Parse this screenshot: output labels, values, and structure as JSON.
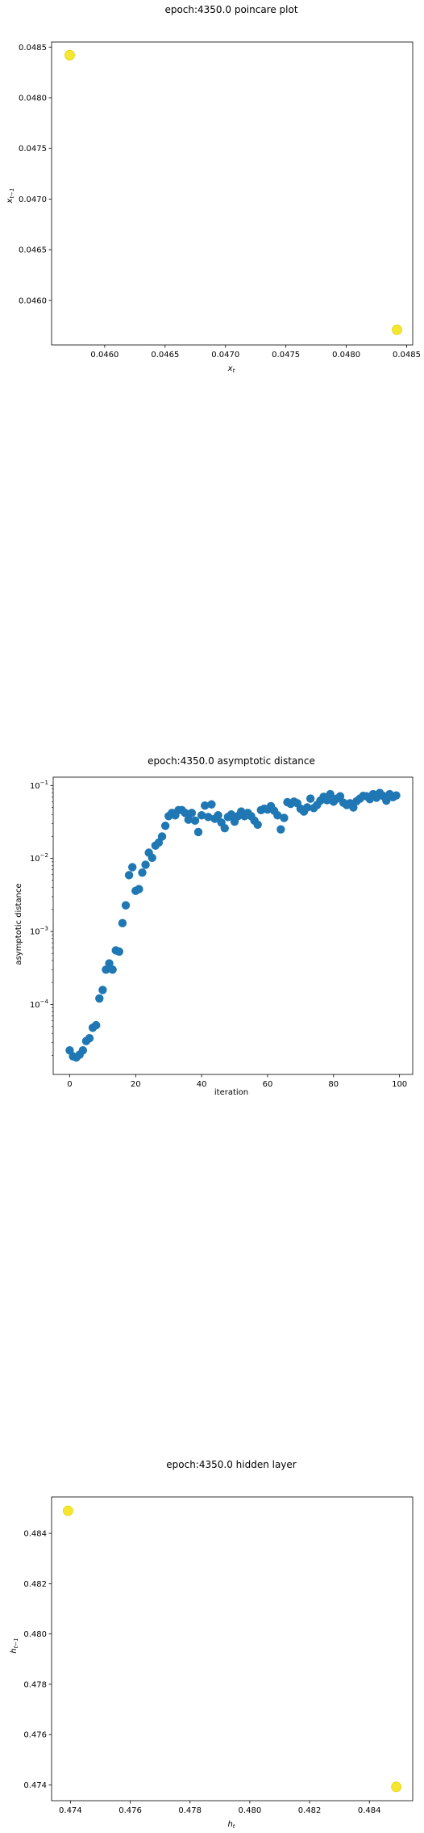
{
  "colors": {
    "yellow_marker": "#f5e631",
    "blue_marker": "#1f77b4"
  },
  "chart_data": [
    {
      "type": "scatter",
      "title": "epoch:4350.0 poincare plot",
      "xlabel": "x_t",
      "ylabel": "x_{t-1}",
      "xlim": [
        0.04556,
        0.04855
      ],
      "ylim": [
        0.04556,
        0.04855
      ],
      "xticks": [
        "0.0460",
        "0.0465",
        "0.0470",
        "0.0475",
        "0.0480",
        "0.0485"
      ],
      "yticks": [
        "0.0460",
        "0.0465",
        "0.0470",
        "0.0475",
        "0.0480",
        "0.0485"
      ],
      "points": [
        {
          "x": 0.04571,
          "y": 0.04842
        },
        {
          "x": 0.04842,
          "y": 0.04571
        }
      ],
      "grid": false,
      "legend": "none"
    },
    {
      "type": "scatter",
      "title": "epoch:4350.0 asymptotic distance",
      "xlabel": "iteration",
      "ylabel": "asymptotic distance",
      "yscale": "log",
      "xlim": [
        -5,
        104
      ],
      "ylim": [
        1.1e-05,
        0.13
      ],
      "xticks": [
        "0",
        "20",
        "40",
        "60",
        "80",
        "100"
      ],
      "yticks": [
        "10^-4",
        "10^-3",
        "10^-2",
        "10^-1"
      ],
      "x": [
        0,
        1,
        2,
        3,
        4,
        5,
        6,
        7,
        8,
        9,
        10,
        11,
        12,
        13,
        14,
        15,
        16,
        17,
        18,
        19,
        20,
        21,
        22,
        23,
        24,
        25,
        26,
        27,
        28,
        29,
        30,
        31,
        32,
        33,
        34,
        35,
        36,
        37,
        38,
        39,
        40,
        41,
        42,
        43,
        44,
        45,
        46,
        47,
        48,
        49,
        50,
        51,
        52,
        53,
        54,
        55,
        56,
        57,
        58,
        59,
        60,
        61,
        62,
        63,
        64,
        65,
        66,
        67,
        68,
        69,
        70,
        71,
        72,
        73,
        74,
        75,
        76,
        77,
        78,
        79,
        80,
        81,
        82,
        83,
        84,
        85,
        86,
        87,
        88,
        89,
        90,
        91,
        92,
        93,
        94,
        95,
        96,
        97,
        98,
        99
      ],
      "y": [
        2.35e-05,
        1.95e-05,
        1.88e-05,
        2.05e-05,
        2.35e-05,
        3.15e-05,
        3.45e-05,
        4.8e-05,
        5.2e-05,
        0.000121,
        0.000158,
        0.0003,
        0.000365,
        0.0003,
        0.00055,
        0.00053,
        0.0013,
        0.00228,
        0.0059,
        0.0076,
        0.0036,
        0.0038,
        0.0064,
        0.0082,
        0.012,
        0.0102,
        0.015,
        0.0165,
        0.02,
        0.028,
        0.038,
        0.042,
        0.039,
        0.046,
        0.046,
        0.042,
        0.034,
        0.042,
        0.033,
        0.023,
        0.039,
        0.053,
        0.037,
        0.055,
        0.035,
        0.039,
        0.031,
        0.026,
        0.037,
        0.04,
        0.032,
        0.038,
        0.044,
        0.038,
        0.042,
        0.038,
        0.033,
        0.029,
        0.046,
        0.048,
        0.047,
        0.052,
        0.045,
        0.039,
        0.025,
        0.036,
        0.059,
        0.056,
        0.06,
        0.057,
        0.048,
        0.044,
        0.05,
        0.066,
        0.049,
        0.054,
        0.062,
        0.07,
        0.063,
        0.076,
        0.06,
        0.066,
        0.071,
        0.058,
        0.054,
        0.057,
        0.05,
        0.061,
        0.066,
        0.072,
        0.071,
        0.065,
        0.076,
        0.068,
        0.079,
        0.072,
        0.062,
        0.076,
        0.069,
        0.073
      ]
    },
    {
      "type": "scatter",
      "title": "epoch:4350.0 hidden layer",
      "xlabel": "h_t",
      "ylabel": "h_{t-1}",
      "xlim": [
        0.47337,
        0.48545
      ],
      "ylim": [
        0.47337,
        0.48545
      ],
      "xticks": [
        "0.474",
        "0.476",
        "0.478",
        "0.480",
        "0.482",
        "0.484"
      ],
      "yticks": [
        "0.474",
        "0.476",
        "0.478",
        "0.480",
        "0.482",
        "0.484"
      ],
      "points": [
        {
          "x": 0.47392,
          "y": 0.4849
        },
        {
          "x": 0.4849,
          "y": 0.47392
        }
      ],
      "grid": false,
      "legend": "none"
    }
  ]
}
